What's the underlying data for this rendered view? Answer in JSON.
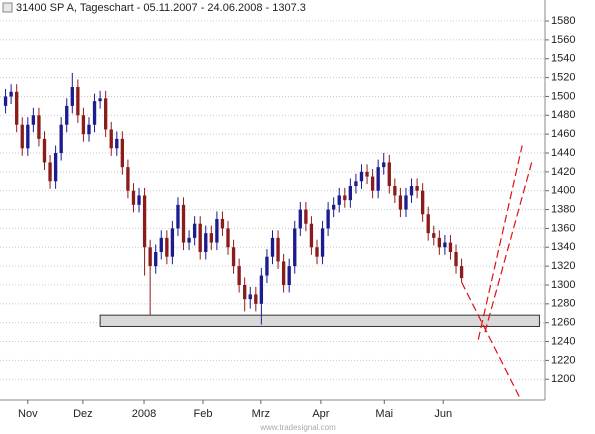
{
  "chart_data": {
    "type": "candlestick",
    "title": "31400  SP A, Tageschart - 05.11.2007 - 24.06.2008 - 1307.3",
    "watermark": "www.tradesignal.com",
    "up_color": "#1c1c8f",
    "down_color": "#8c1c1c",
    "grid": true,
    "xlim": [
      -1,
      97
    ],
    "ylim": [
      1178,
      1597
    ],
    "yticks": [
      1200,
      1220,
      1240,
      1260,
      1280,
      1300,
      1320,
      1340,
      1360,
      1380,
      1400,
      1420,
      1440,
      1460,
      1480,
      1500,
      1520,
      1540,
      1560,
      1580
    ],
    "xticks": [
      {
        "value": 4,
        "label": "Nov"
      },
      {
        "value": 13.9,
        "label": "Dez"
      },
      {
        "value": 24.9,
        "label": "2008"
      },
      {
        "value": 35.5,
        "label": "Feb"
      },
      {
        "value": 45.9,
        "label": "Mrz"
      },
      {
        "value": 56.7,
        "label": "Apr"
      },
      {
        "value": 68.1,
        "label": "Mai"
      },
      {
        "value": 78.7,
        "label": "Jun"
      }
    ],
    "open": [
      1490,
      1500,
      1505,
      1470,
      1445,
      1470,
      1480,
      1455,
      1430,
      1410,
      1440,
      1470,
      1490,
      1510,
      1480,
      1460,
      1470,
      1495,
      1498,
      1465,
      1445,
      1455,
      1425,
      1400,
      1385,
      1395,
      1340,
      1320,
      1335,
      1350,
      1330,
      1360,
      1385,
      1345,
      1350,
      1365,
      1335,
      1355,
      1345,
      1370,
      1360,
      1340,
      1320,
      1300,
      1285,
      1290,
      1280,
      1310,
      1330,
      1350,
      1325,
      1300,
      1320,
      1360,
      1380,
      1365,
      1340,
      1330,
      1360,
      1380,
      1385,
      1395,
      1390,
      1405,
      1410,
      1420,
      1415,
      1400,
      1425,
      1430,
      1405,
      1395,
      1380,
      1395,
      1405,
      1400,
      1375,
      1355,
      1350,
      1340,
      1345,
      1335,
      1320
    ],
    "high": [
      1508,
      1513,
      1513,
      1478,
      1478,
      1488,
      1488,
      1463,
      1438,
      1448,
      1478,
      1498,
      1525,
      1518,
      1488,
      1478,
      1503,
      1506,
      1506,
      1473,
      1463,
      1463,
      1433,
      1408,
      1403,
      1403,
      1348,
      1343,
      1358,
      1358,
      1368,
      1393,
      1393,
      1358,
      1373,
      1373,
      1363,
      1363,
      1378,
      1378,
      1368,
      1348,
      1328,
      1308,
      1298,
      1298,
      1318,
      1338,
      1358,
      1358,
      1333,
      1328,
      1368,
      1388,
      1388,
      1373,
      1348,
      1368,
      1388,
      1393,
      1403,
      1403,
      1413,
      1418,
      1428,
      1428,
      1423,
      1433,
      1440,
      1438,
      1413,
      1403,
      1403,
      1413,
      1413,
      1408,
      1383,
      1363,
      1358,
      1353,
      1353,
      1343,
      1328
    ],
    "low": [
      1482,
      1492,
      1462,
      1437,
      1437,
      1462,
      1447,
      1422,
      1402,
      1402,
      1432,
      1462,
      1482,
      1472,
      1452,
      1452,
      1462,
      1487,
      1457,
      1437,
      1437,
      1417,
      1392,
      1377,
      1377,
      1310,
      1268,
      1312,
      1327,
      1322,
      1322,
      1352,
      1337,
      1337,
      1342,
      1327,
      1327,
      1337,
      1337,
      1352,
      1332,
      1312,
      1292,
      1272,
      1275,
      1272,
      1258,
      1302,
      1322,
      1317,
      1292,
      1292,
      1312,
      1352,
      1357,
      1332,
      1322,
      1322,
      1352,
      1372,
      1377,
      1382,
      1382,
      1397,
      1402,
      1407,
      1392,
      1392,
      1417,
      1397,
      1387,
      1372,
      1372,
      1387,
      1392,
      1367,
      1347,
      1342,
      1332,
      1332,
      1327,
      1312,
      1303
    ],
    "close": [
      1500,
      1505,
      1470,
      1445,
      1470,
      1480,
      1455,
      1430,
      1410,
      1440,
      1470,
      1490,
      1510,
      1480,
      1460,
      1470,
      1495,
      1498,
      1465,
      1445,
      1455,
      1425,
      1400,
      1385,
      1395,
      1340,
      1320,
      1335,
      1350,
      1330,
      1360,
      1385,
      1345,
      1350,
      1365,
      1335,
      1355,
      1345,
      1370,
      1360,
      1340,
      1320,
      1300,
      1285,
      1290,
      1280,
      1310,
      1330,
      1350,
      1325,
      1300,
      1320,
      1360,
      1380,
      1365,
      1340,
      1330,
      1360,
      1380,
      1385,
      1395,
      1390,
      1405,
      1410,
      1420,
      1415,
      1400,
      1425,
      1430,
      1405,
      1395,
      1380,
      1395,
      1405,
      1400,
      1375,
      1355,
      1350,
      1340,
      1345,
      1335,
      1320,
      1307.3
    ],
    "zones": [
      {
        "from": 1256,
        "to": 1268,
        "start": 17,
        "end": 96,
        "color": "#d9d9d9"
      }
    ],
    "lines": [
      {
        "x": [
          82,
          92.5
        ],
        "y": [
          1303,
          1180
        ],
        "color": "#e01010"
      },
      {
        "x": [
          85,
          92.9
        ],
        "y": [
          1242,
          1448
        ],
        "color": "#e01010"
      },
      {
        "x": [
          86.2,
          94.7
        ],
        "y": [
          1250,
          1432
        ],
        "color": "#e01010"
      }
    ]
  }
}
